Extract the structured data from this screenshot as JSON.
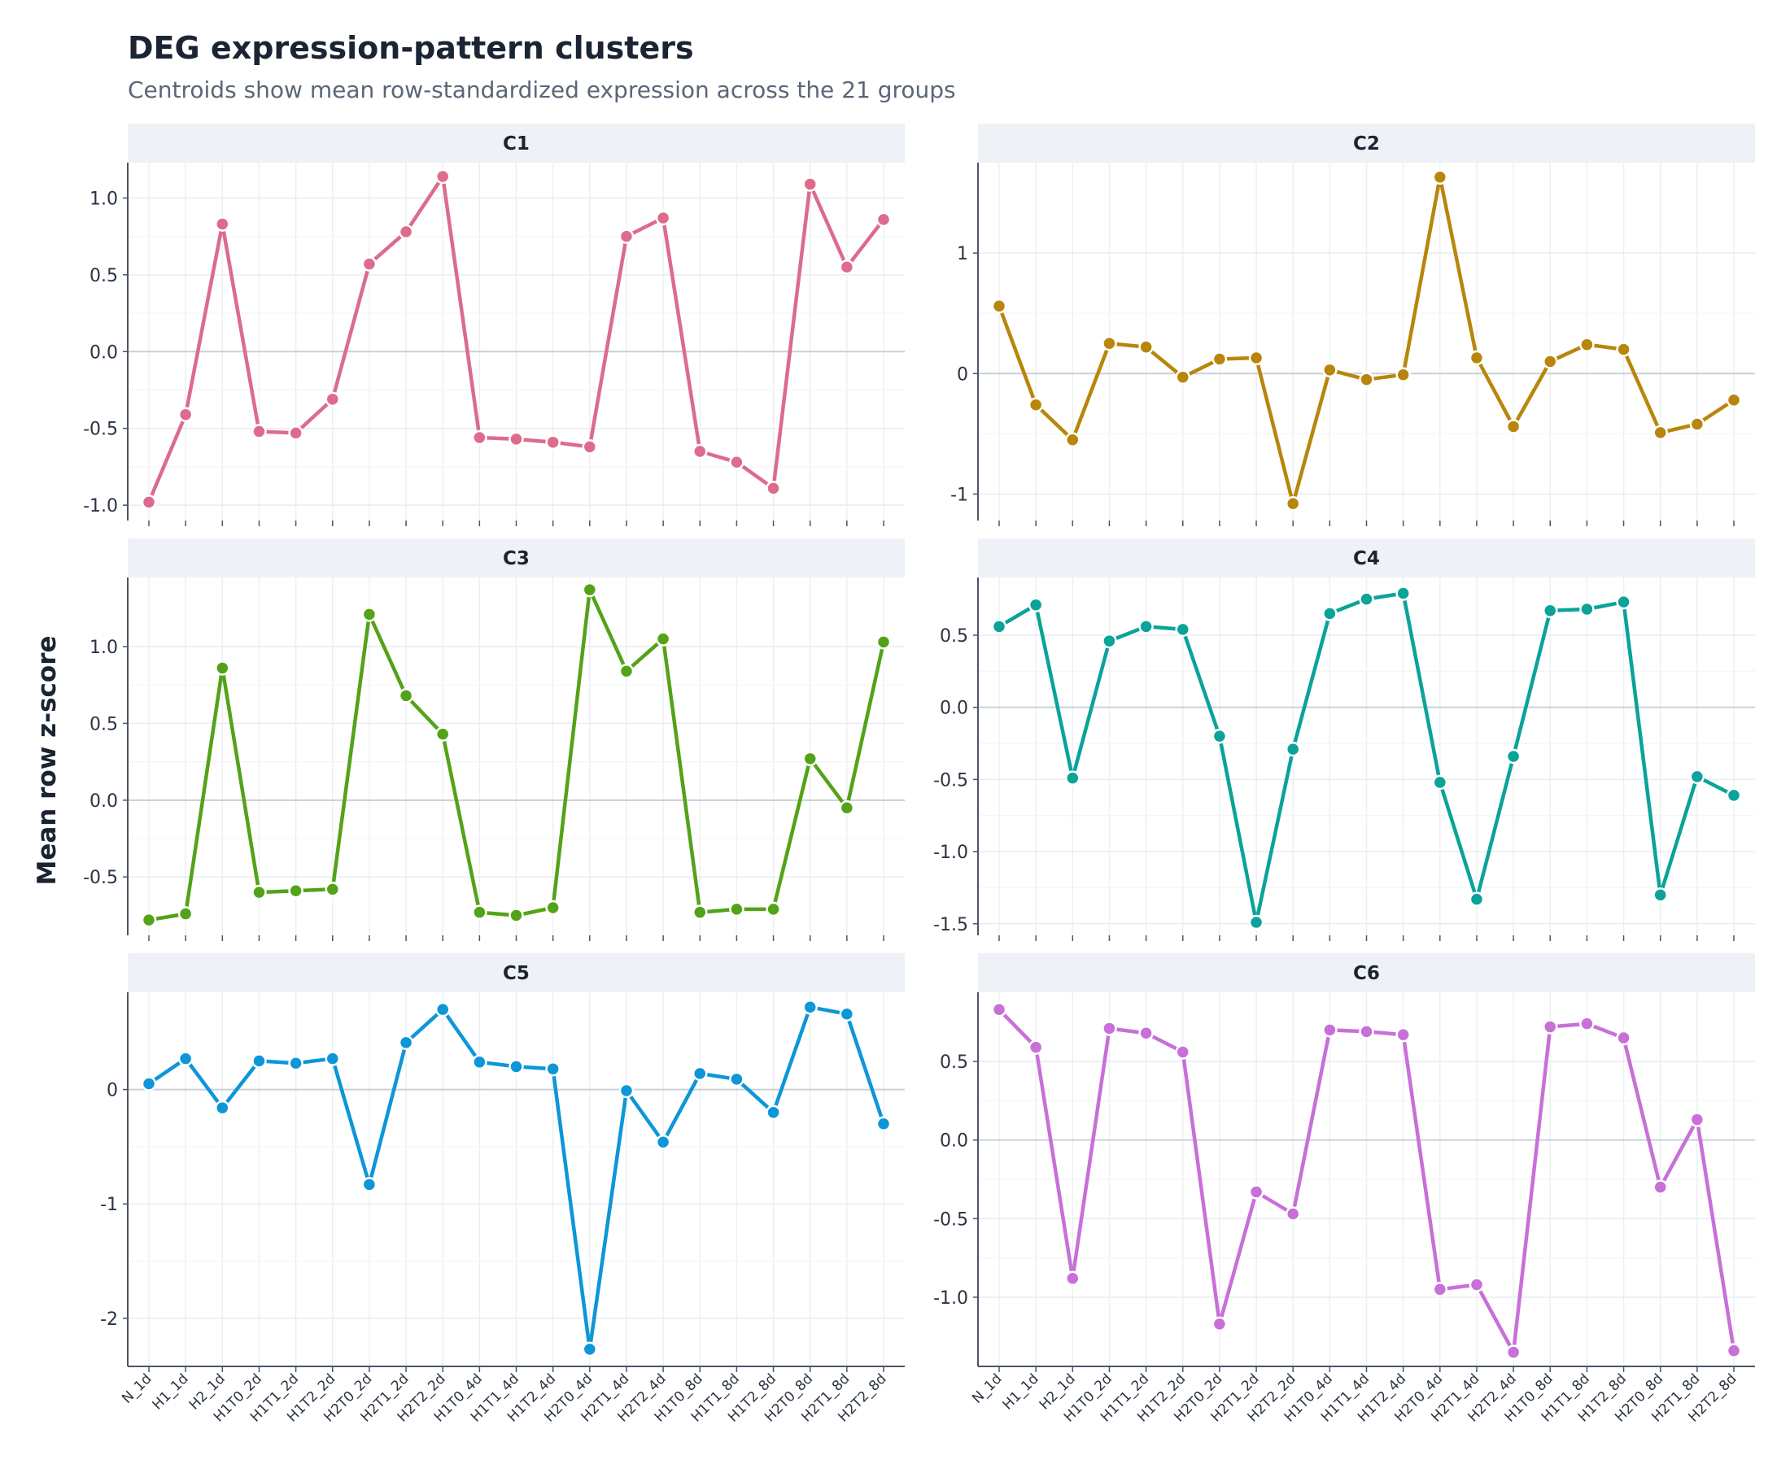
{
  "title": "DEG expression-pattern clusters",
  "subtitle": "Centroids show mean row-standardized expression across the 21 groups",
  "chart_data": {
    "type": "line",
    "title": "DEG expression-pattern clusters",
    "subtitle": "Centroids show mean row-standardized expression across the 21 groups",
    "ylabel": "Mean row z-score",
    "xlabel": "",
    "categories": [
      "N_1d",
      "H1_1d",
      "H2_1d",
      "H1T0_2d",
      "H1T1_2d",
      "H1T2_2d",
      "H2T0_2d",
      "H2T1_2d",
      "H2T2_2d",
      "H1T0_4d",
      "H1T1_4d",
      "H1T2_4d",
      "H2T0_4d",
      "H2T1_4d",
      "H2T2_4d",
      "H1T0_8d",
      "H1T1_8d",
      "H1T2_8d",
      "H2T0_8d",
      "H2T1_8d",
      "H2T2_8d"
    ],
    "grid": true,
    "legend": "none",
    "panels": [
      {
        "name": "C1",
        "color": "#dc6b8c",
        "ylim": [
          -1.1,
          1.23
        ],
        "yticks": [
          -1.0,
          -0.5,
          0.0,
          0.5,
          1.0
        ],
        "yticklabels": [
          "-1.0",
          "-0.5",
          "0.0",
          "0.5",
          "1.0"
        ],
        "values": [
          -0.98,
          -0.41,
          0.83,
          -0.52,
          -0.53,
          -0.31,
          0.57,
          0.78,
          1.14,
          -0.56,
          -0.57,
          -0.59,
          -0.62,
          0.75,
          0.87,
          -0.65,
          -0.72,
          -0.89,
          1.09,
          0.55,
          0.86
        ]
      },
      {
        "name": "C2",
        "color": "#b8860b",
        "ylim": [
          -1.22,
          1.75
        ],
        "yticks": [
          -1,
          0,
          1
        ],
        "yticklabels": [
          "-1",
          "0",
          "1"
        ],
        "values": [
          0.56,
          -0.26,
          -0.55,
          0.25,
          0.22,
          -0.03,
          0.12,
          0.13,
          -1.08,
          0.03,
          -0.05,
          -0.01,
          1.63,
          0.13,
          -0.44,
          0.1,
          0.24,
          0.2,
          -0.49,
          -0.42,
          -0.22
        ]
      },
      {
        "name": "C3",
        "color": "#53a318",
        "ylim": [
          -0.88,
          1.45
        ],
        "yticks": [
          -0.5,
          0.0,
          0.5,
          1.0
        ],
        "yticklabels": [
          "-0.5",
          "0.0",
          "0.5",
          "1.0"
        ],
        "values": [
          -0.78,
          -0.74,
          0.86,
          -0.6,
          -0.59,
          -0.58,
          1.21,
          0.68,
          0.43,
          -0.73,
          -0.75,
          -0.7,
          1.37,
          0.84,
          1.05,
          -0.73,
          -0.71,
          -0.71,
          0.27,
          -0.05,
          1.03
        ]
      },
      {
        "name": "C4",
        "color": "#0aa39a",
        "ylim": [
          -1.58,
          0.9
        ],
        "yticks": [
          -1.5,
          -1.0,
          -0.5,
          0.0,
          0.5
        ],
        "yticklabels": [
          "-1.5",
          "-1.0",
          "-0.5",
          "0.0",
          "0.5"
        ],
        "values": [
          0.56,
          0.71,
          -0.49,
          0.46,
          0.56,
          0.54,
          -0.2,
          -1.49,
          -0.29,
          0.65,
          0.75,
          0.79,
          -0.52,
          -1.33,
          -0.34,
          0.67,
          0.68,
          0.73,
          -1.3,
          -0.48,
          -0.61
        ]
      },
      {
        "name": "C5",
        "color": "#0d96d8",
        "ylim": [
          -2.42,
          0.85
        ],
        "yticks": [
          -2,
          -1,
          0
        ],
        "yticklabels": [
          "-2",
          "-1",
          "0"
        ],
        "values": [
          0.05,
          0.27,
          -0.16,
          0.25,
          0.23,
          0.27,
          -0.83,
          0.41,
          0.7,
          0.24,
          0.2,
          0.18,
          -2.27,
          -0.01,
          -0.46,
          0.14,
          0.09,
          -0.2,
          0.72,
          0.66,
          -0.3
        ]
      },
      {
        "name": "C6",
        "color": "#c86fd8",
        "ylim": [
          -1.44,
          0.94
        ],
        "yticks": [
          -1.0,
          -0.5,
          0.0,
          0.5
        ],
        "yticklabels": [
          "-1.0",
          "-0.5",
          "0.0",
          "0.5"
        ],
        "values": [
          0.83,
          0.59,
          -0.88,
          0.71,
          0.68,
          0.56,
          -1.17,
          -0.33,
          -0.47,
          0.7,
          0.69,
          0.67,
          -0.95,
          -0.92,
          -1.35,
          0.72,
          0.74,
          0.65,
          -0.3,
          0.13,
          -1.34
        ]
      }
    ]
  }
}
